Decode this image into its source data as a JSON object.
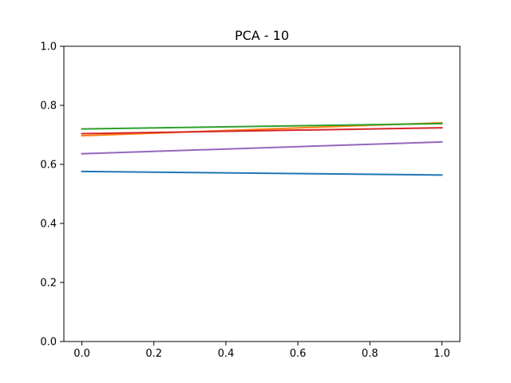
{
  "chart_data": {
    "type": "line",
    "title": "PCA - 10",
    "xlabel": "",
    "ylabel": "",
    "xlim": [
      -0.05,
      1.05
    ],
    "ylim": [
      0.0,
      1.0
    ],
    "x_ticks": [
      0.0,
      0.2,
      0.4,
      0.6,
      0.8,
      1.0
    ],
    "x_tick_labels": [
      "0.0",
      "0.2",
      "0.4",
      "0.6",
      "0.8",
      "1.0"
    ],
    "y_ticks": [
      0.0,
      0.2,
      0.4,
      0.6,
      0.8,
      1.0
    ],
    "y_tick_labels": [
      "0.0",
      "0.2",
      "0.4",
      "0.6",
      "0.8",
      "1.0"
    ],
    "grid": false,
    "legend": "none",
    "x": [
      0.0,
      1.0
    ],
    "series": [
      {
        "color": "#1f77b4",
        "values": [
          0.576,
          0.564
        ]
      },
      {
        "color": "#ff7f0e",
        "values": [
          0.697,
          0.741
        ]
      },
      {
        "color": "#2ca02c",
        "values": [
          0.72,
          0.738
        ]
      },
      {
        "color": "#d62728",
        "values": [
          0.704,
          0.724
        ]
      },
      {
        "color": "#9467bd",
        "values": [
          0.636,
          0.676
        ]
      }
    ]
  }
}
